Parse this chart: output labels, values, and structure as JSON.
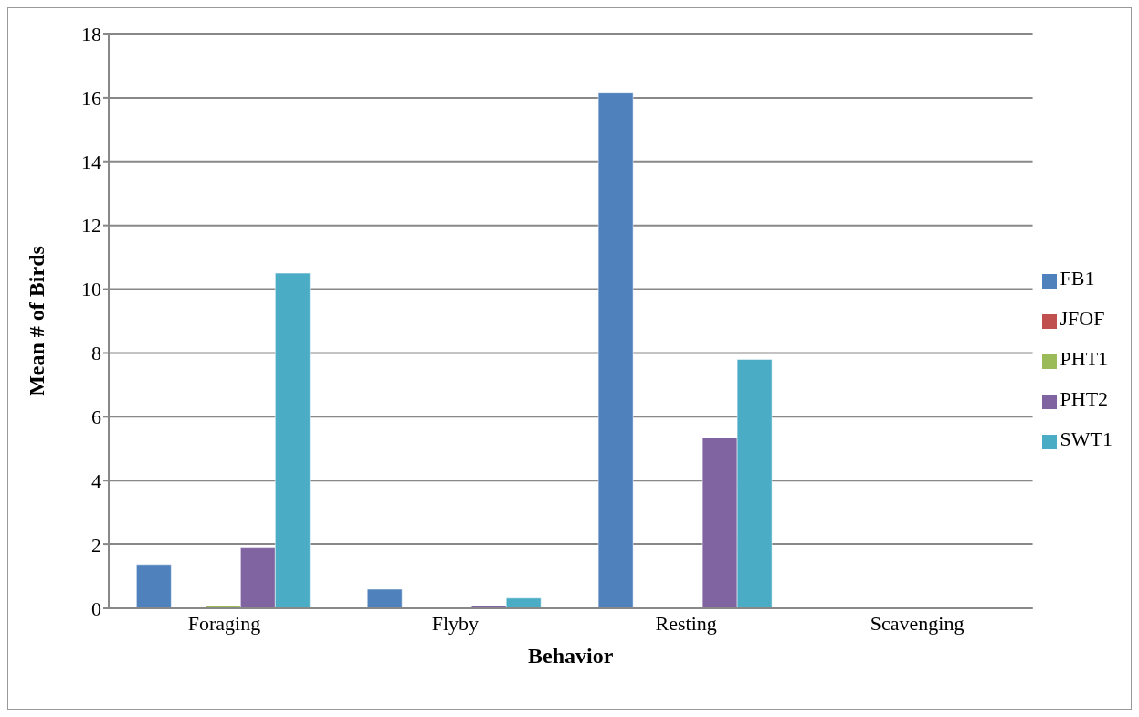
{
  "chart_data": {
    "type": "bar",
    "xlabel": "Behavior",
    "ylabel": "Mean # of Birds",
    "categories": [
      "Foraging",
      "Flyby",
      "Resting",
      "Scavenging"
    ],
    "series": [
      {
        "name": "FB1",
        "color": "#4f81bd",
        "values": [
          1.35,
          0.6,
          16.15,
          0.03
        ]
      },
      {
        "name": "JFOF",
        "color": "#c0504d",
        "values": [
          0.02,
          0.02,
          0.02,
          0
        ]
      },
      {
        "name": "PHT1",
        "color": "#9bbb59",
        "values": [
          0.08,
          0.01,
          0.02,
          0
        ]
      },
      {
        "name": "PHT2",
        "color": "#8064a2",
        "values": [
          1.9,
          0.08,
          5.35,
          0
        ]
      },
      {
        "name": "SWT1",
        "color": "#4bacc6",
        "values": [
          10.5,
          0.32,
          7.8,
          0
        ]
      }
    ],
    "ylim": [
      0,
      18
    ],
    "yticks": [
      0,
      2,
      4,
      6,
      8,
      10,
      12,
      14,
      16,
      18
    ],
    "grid": "y",
    "legend": "right"
  }
}
